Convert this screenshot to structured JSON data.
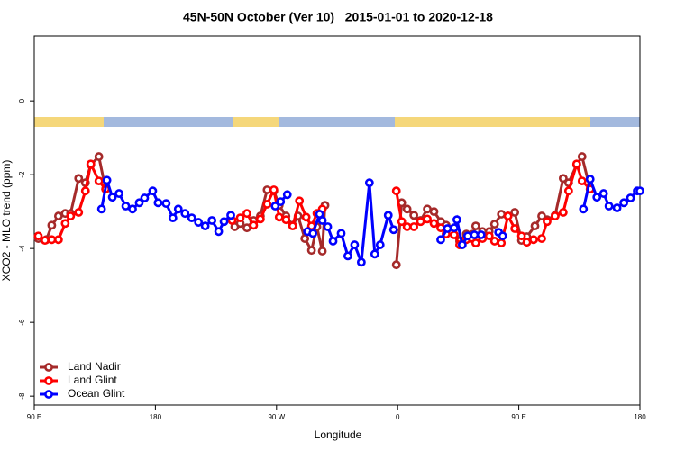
{
  "chart_data": {
    "type": "line",
    "title": "45N-50N October (Ver 10)   2015-01-01 to 2020-12-18",
    "x_label": "Longitude",
    "y_label": "XCO2 - MLO trend (ppm)",
    "xlim": [
      90,
      540
    ],
    "ylim": [
      -8.24,
      1.76
    ],
    "xticks": [
      {
        "value": 90,
        "label": "90 E"
      },
      180,
      {
        "value": 270,
        "label": "90 W"
      },
      {
        "value": 360,
        "label": "0"
      },
      {
        "value": 450,
        "label": "90 E"
      },
      {
        "value": 540,
        "label": "180"
      }
    ],
    "yticks": [
      0,
      -2,
      -4,
      -6,
      -8
    ],
    "legend": "bottom-left",
    "series": [
      {
        "name": "Land Nadir",
        "color": "#a52a2a",
        "x": [
          93,
          99,
          103,
          108,
          113,
          117,
          123,
          128,
          132,
          138,
          143,
          180,
          239,
          243,
          248,
          253,
          258,
          263,
          268,
          272,
          277,
          282,
          286,
          291,
          296,
          300,
          304,
          306,
          319,
          359,
          363,
          367,
          372,
          377,
          382,
          387,
          392,
          396,
          402,
          406,
          411,
          416,
          418,
          423,
          428,
          432,
          437,
          442,
          447,
          452,
          456,
          462,
          467,
          471,
          477,
          483,
          487,
          493,
          497,
          503
        ],
        "values": [
          -3.73,
          -3.76,
          -3.37,
          -3.12,
          -3.05,
          -3.05,
          -2.1,
          -2.22,
          -1.73,
          -1.51,
          -2.39,
          null,
          -3.41,
          -3.32,
          -3.44,
          -3.24,
          -3.12,
          -2.41,
          -2.44,
          -2.83,
          -3.12,
          -3.37,
          -3.12,
          -3.73,
          -4.05,
          -3.41,
          -4.07,
          -2.83,
          null,
          -4.44,
          -2.76,
          -2.93,
          -3.1,
          -3.24,
          -2.93,
          -3.0,
          -3.27,
          -3.37,
          -3.44,
          -3.8,
          -3.61,
          -3.61,
          -3.39,
          -3.54,
          -3.54,
          -3.34,
          -3.07,
          -3.12,
          -3.02,
          -3.78,
          -3.68,
          -3.39,
          -3.12,
          -3.22,
          -3.1,
          -2.1,
          -2.22,
          -1.73,
          -1.51,
          -2.39
        ]
      },
      {
        "name": "Land Glint",
        "color": "#ff0000",
        "x": [
          93,
          98,
          103,
          108,
          113,
          117,
          123,
          128,
          132,
          138,
          143,
          180,
          237,
          243,
          248,
          253,
          258,
          263,
          268,
          272,
          277,
          282,
          287,
          292,
          296,
          300,
          304,
          319,
          359,
          363,
          367,
          372,
          377,
          382,
          387,
          392,
          396,
          402,
          406,
          411,
          418,
          423,
          428,
          432,
          437,
          442,
          447,
          452,
          456,
          461,
          467,
          471,
          477,
          483,
          487,
          493,
          497,
          503
        ],
        "values": [
          -3.66,
          -3.78,
          -3.76,
          -3.76,
          -3.32,
          -3.12,
          -3.02,
          -2.44,
          -1.71,
          -2.17,
          -2.39,
          null,
          -3.24,
          -3.17,
          -3.05,
          -3.37,
          -3.2,
          -2.8,
          -2.41,
          -3.15,
          -3.22,
          -3.39,
          -2.71,
          -3.15,
          -3.39,
          -3.05,
          -2.93,
          null,
          -2.44,
          -3.27,
          -3.41,
          -3.41,
          -3.27,
          -3.2,
          -3.32,
          -3.44,
          -3.61,
          -3.63,
          -3.9,
          -3.76,
          -3.85,
          -3.73,
          -3.66,
          -3.8,
          -3.85,
          -3.12,
          -3.46,
          -3.66,
          -3.83,
          -3.76,
          -3.73,
          -3.27,
          -3.12,
          -3.02,
          -2.44,
          -1.71,
          -2.17,
          -2.39
        ]
      },
      {
        "name": "Ocean Glint",
        "color": "#0000ff",
        "x": [
          140,
          144,
          148,
          153,
          158,
          163,
          168,
          172,
          178,
          182,
          188,
          193,
          197,
          202,
          207,
          212,
          217,
          222,
          227,
          231,
          236,
          250,
          269,
          273,
          278,
          290,
          293,
          297,
          302,
          304,
          308,
          312,
          318,
          323,
          328,
          333,
          339,
          343,
          347,
          353,
          357,
          380,
          392,
          397,
          402,
          404,
          408,
          412,
          417,
          422,
          430,
          435,
          438,
          470,
          498,
          503,
          508,
          513,
          517,
          523,
          528,
          533,
          538,
          540
        ],
        "values": [
          -2.93,
          -2.15,
          -2.61,
          -2.51,
          -2.85,
          -2.93,
          -2.76,
          -2.63,
          -2.44,
          -2.76,
          -2.78,
          -3.17,
          -2.93,
          -3.05,
          -3.17,
          -3.29,
          -3.39,
          -3.24,
          -3.54,
          -3.27,
          -3.1,
          null,
          -2.85,
          -2.73,
          -2.54,
          null,
          -3.54,
          -3.59,
          -3.07,
          -3.24,
          -3.41,
          -3.8,
          -3.59,
          -4.2,
          -3.9,
          -4.37,
          -2.22,
          -4.15,
          -3.9,
          -3.1,
          -3.49,
          null,
          -3.76,
          -3.46,
          -3.44,
          -3.22,
          -3.9,
          -3.66,
          -3.63,
          -3.63,
          null,
          -3.56,
          -3.66,
          null,
          -2.93,
          -2.12,
          -2.61,
          -2.51,
          -2.85,
          -2.9,
          -2.76,
          -2.63,
          -2.44,
          -2.44
        ]
      }
    ]
  }
}
